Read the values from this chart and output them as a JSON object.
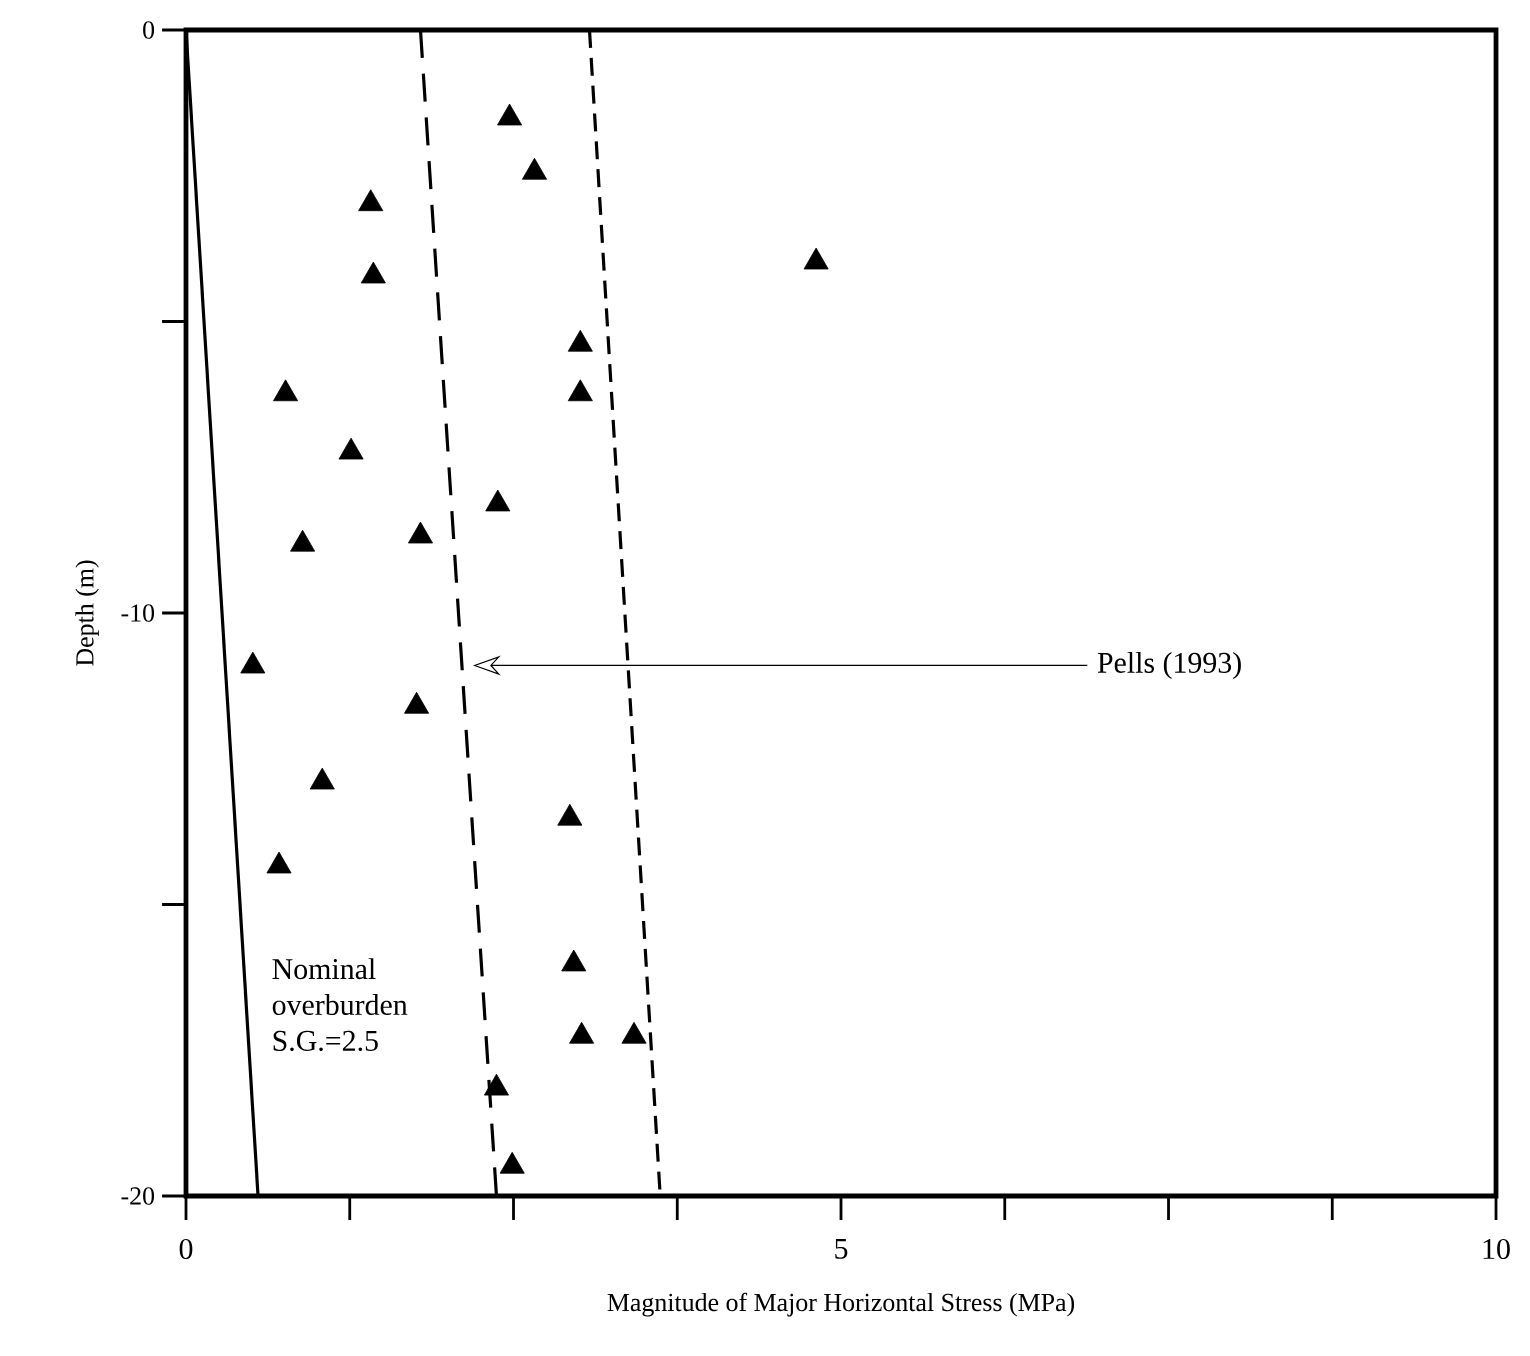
{
  "chart_data": {
    "type": "scatter",
    "xlabel": "Magnitude of Major Horizontal Stress (MPa)",
    "ylabel": "Depth (m)",
    "xlim": [
      0,
      10
    ],
    "ylim": [
      -20,
      0
    ],
    "xticks": [
      0,
      {
        "value": 1.25,
        "label": null
      },
      {
        "value": 2.5,
        "label": null
      },
      {
        "value": 3.75,
        "label": null
      },
      5,
      {
        "value": 6.25,
        "label": null
      },
      {
        "value": 7.5,
        "label": null
      },
      {
        "value": 8.75,
        "label": null
      },
      10
    ],
    "yticks": [
      -20,
      {
        "value": -15,
        "label": null
      },
      -10,
      {
        "value": -5,
        "label": null
      },
      0
    ],
    "grid": false,
    "series": [
      {
        "marker": "triangle",
        "color": "#000000",
        "x": [
          2.47,
          2.66,
          1.41,
          1.43,
          4.81,
          3.01,
          3.01,
          0.76,
          1.26,
          2.38,
          0.89,
          1.79,
          0.51,
          1.76,
          1.04,
          0.71,
          2.93,
          2.96,
          3.02,
          3.42,
          2.37,
          2.49
        ],
        "values": [
          -1.51,
          -2.44,
          -2.98,
          -4.22,
          -3.98,
          -5.39,
          -6.24,
          -6.24,
          -7.24,
          -8.13,
          -8.82,
          -8.68,
          -10.91,
          -11.6,
          -12.9,
          -14.34,
          -13.52,
          -16.02,
          -17.26,
          -17.26,
          -18.15,
          -19.49
        ]
      },
      {
        "type": "line",
        "line_style": "solid",
        "color": "#000000",
        "x": [
          0,
          0.55
        ],
        "values": [
          0,
          -20
        ]
      },
      {
        "type": "line",
        "line_style": "dashed",
        "color": "#000000",
        "x": [
          1.79,
          2.37
        ],
        "values": [
          0,
          -20
        ]
      },
      {
        "type": "line",
        "line_style": "dashed",
        "color": "#000000",
        "x": [
          3.08,
          3.62
        ],
        "values": [
          0,
          -20
        ]
      }
    ],
    "annotations": [
      "Pells (1993)",
      "Nominal overburden S.G.=2.5"
    ]
  }
}
